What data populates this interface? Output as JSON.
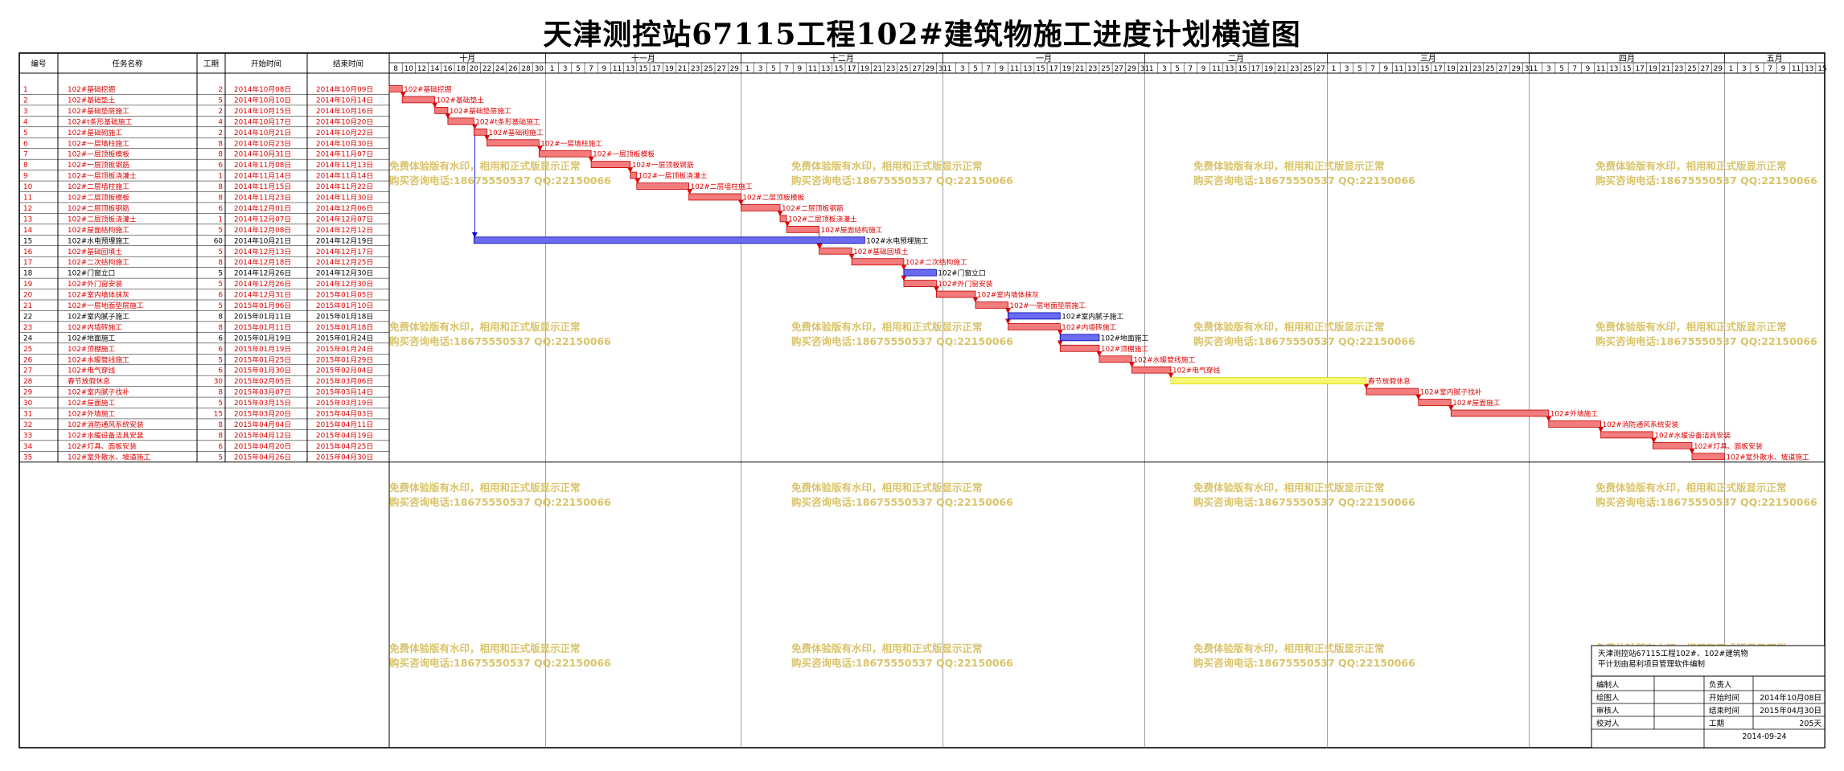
{
  "title": "天津测控站67115工程102#建筑物施工进度计划横道图",
  "columns": {
    "no": "编号",
    "name": "任务名称",
    "dur": "工期",
    "start": "开始时间",
    "end": "结束时间"
  },
  "chart_data": {
    "type": "gantt",
    "title": "天津测控站67115工程102#建筑物施工进度计划横道图",
    "time_axis": {
      "start": "2014-10-08",
      "end": "2015-05-15",
      "months": [
        {
          "label": "十月",
          "start": "2014-10-08"
        },
        {
          "label": "十一月",
          "start": "2014-11-01"
        },
        {
          "label": "十二月",
          "start": "2014-12-01"
        },
        {
          "label": "一月",
          "start": "2015-01-01"
        },
        {
          "label": "二月",
          "start": "2015-02-01"
        },
        {
          "label": "三月",
          "start": "2015-03-01"
        },
        {
          "label": "四月",
          "start": "2015-04-01"
        },
        {
          "label": "五月",
          "start": "2015-05-01"
        }
      ],
      "day_labels": "odd days of month (1,3,5,...), October from 8"
    },
    "colors": {
      "critical": "#f47c7c",
      "normal": "#6b6bf0",
      "holiday": "#f7f774",
      "link_red": "#e00000",
      "link_blue": "#0000e0"
    },
    "tasks": [
      {
        "no": "1",
        "name": "102#基础挖掘",
        "dur": "2",
        "start": "2014年10月08日",
        "end": "2014年10月09日",
        "s": "2014-10-08",
        "e": "2014-10-09",
        "kind": "critical",
        "label": "102#基础挖掘"
      },
      {
        "no": "2",
        "name": "102#基础垫土",
        "dur": "5",
        "start": "2014年10月10日",
        "end": "2014年10月14日",
        "s": "2014-10-10",
        "e": "2014-10-14",
        "kind": "critical",
        "label": "102#基础垫土"
      },
      {
        "no": "3",
        "name": "102#基础垫层施工",
        "dur": "2",
        "start": "2014年10月15日",
        "end": "2014年10月16日",
        "s": "2014-10-15",
        "e": "2014-10-16",
        "kind": "critical",
        "label": "102#基础垫层施工"
      },
      {
        "no": "4",
        "name": "102#t条形基础施工",
        "dur": "4",
        "start": "2014年10月17日",
        "end": "2014年10月20日",
        "s": "2014-10-17",
        "e": "2014-10-20",
        "kind": "critical",
        "label": "102#t条形基础施工"
      },
      {
        "no": "5",
        "name": "102#基础砌施工",
        "dur": "2",
        "start": "2014年10月21日",
        "end": "2014年10月22日",
        "s": "2014-10-21",
        "e": "2014-10-22",
        "kind": "critical",
        "label": "102#基础砌施工"
      },
      {
        "no": "6",
        "name": "102#一层墙柱施工",
        "dur": "8",
        "start": "2014年10月23日",
        "end": "2014年10月30日",
        "s": "2014-10-23",
        "e": "2014-10-30",
        "kind": "critical",
        "label": "102#一层墙柱施工"
      },
      {
        "no": "7",
        "name": "102#一层顶板模板",
        "dur": "8",
        "start": "2014年10月31日",
        "end": "2014年11月07日",
        "s": "2014-10-31",
        "e": "2014-11-07",
        "kind": "critical",
        "label": "102#一层顶板模板"
      },
      {
        "no": "8",
        "name": "102#一层顶板钢筋",
        "dur": "6",
        "start": "2014年11月08日",
        "end": "2014年11月13日",
        "s": "2014-11-08",
        "e": "2014-11-13",
        "kind": "critical",
        "label": "102#一层顶板钢筋"
      },
      {
        "no": "9",
        "name": "102#一层顶板浇灌土",
        "dur": "1",
        "start": "2014年11月14日",
        "end": "2014年11月14日",
        "s": "2014-11-14",
        "e": "2014-11-14",
        "kind": "critical",
        "label": "102#一层顶板浇灌土"
      },
      {
        "no": "10",
        "name": "102#二层墙柱施工",
        "dur": "8",
        "start": "2014年11月15日",
        "end": "2014年11月22日",
        "s": "2014-11-15",
        "e": "2014-11-22",
        "kind": "critical",
        "label": "102#二层墙柱施工"
      },
      {
        "no": "11",
        "name": "102#二层顶板模板",
        "dur": "8",
        "start": "2014年11月23日",
        "end": "2014年11月30日",
        "s": "2014-11-23",
        "e": "2014-11-30",
        "kind": "critical",
        "label": "102#二层顶板模板"
      },
      {
        "no": "12",
        "name": "102#二层顶板钢筋",
        "dur": "6",
        "start": "2014年12月01日",
        "end": "2014年12月06日",
        "s": "2014-12-01",
        "e": "2014-12-06",
        "kind": "critical",
        "label": "102#二层顶板钢筋"
      },
      {
        "no": "13",
        "name": "102#二层顶板浇灌土",
        "dur": "1",
        "start": "2014年12月07日",
        "end": "2014年12月07日",
        "s": "2014-12-07",
        "e": "2014-12-07",
        "kind": "critical",
        "label": "102#二层顶板浇灌土"
      },
      {
        "no": "14",
        "name": "102#屋面结构施工",
        "dur": "5",
        "start": "2014年12月08日",
        "end": "2014年12月12日",
        "s": "2014-12-08",
        "e": "2014-12-12",
        "kind": "critical",
        "label": "102#屋面结构施工"
      },
      {
        "no": "15",
        "name": "102#水电预埋施工",
        "dur": "60",
        "start": "2014年10月21日",
        "end": "2014年12月19日",
        "s": "2014-10-21",
        "e": "2014-12-19",
        "kind": "normal",
        "label": "102#水电预埋施工"
      },
      {
        "no": "16",
        "name": "102#基础回填土",
        "dur": "5",
        "start": "2014年12月13日",
        "end": "2014年12月17日",
        "s": "2014-12-13",
        "e": "2014-12-17",
        "kind": "critical",
        "label": "102#基础回填土"
      },
      {
        "no": "17",
        "name": "102#二次结构施工",
        "dur": "8",
        "start": "2014年12月18日",
        "end": "2014年12月25日",
        "s": "2014-12-18",
        "e": "2014-12-25",
        "kind": "critical",
        "label": "102#二次结构施工"
      },
      {
        "no": "18",
        "name": "102#门窗立口",
        "dur": "5",
        "start": "2014年12月26日",
        "end": "2014年12月30日",
        "s": "2014-12-26",
        "e": "2014-12-30",
        "kind": "normal",
        "label": "102#门窗立口"
      },
      {
        "no": "19",
        "name": "102#外门窗安装",
        "dur": "5",
        "start": "2014年12月26日",
        "end": "2014年12月30日",
        "s": "2014-12-26",
        "e": "2014-12-30",
        "kind": "critical",
        "label": "102#外门窗安装"
      },
      {
        "no": "20",
        "name": "102#室内墙体抹灰",
        "dur": "6",
        "start": "2014年12月31日",
        "end": "2015年01月05日",
        "s": "2014-12-31",
        "e": "2015-01-05",
        "kind": "critical",
        "label": "102#室内墙体抹灰"
      },
      {
        "no": "21",
        "name": "102#一层地面垫层施工",
        "dur": "5",
        "start": "2015年01月06日",
        "end": "2015年01月10日",
        "s": "2015-01-06",
        "e": "2015-01-10",
        "kind": "critical",
        "label": "102#一层地面垫层施工"
      },
      {
        "no": "22",
        "name": "102#室内腻子施工",
        "dur": "8",
        "start": "2015年01月11日",
        "end": "2015年01月18日",
        "s": "2015-01-11",
        "e": "2015-01-18",
        "kind": "normal",
        "label": "102#室内腻子施工"
      },
      {
        "no": "23",
        "name": "102#内墙砖施工",
        "dur": "8",
        "start": "2015年01月11日",
        "end": "2015年01月18日",
        "s": "2015-01-11",
        "e": "2015-01-18",
        "kind": "critical",
        "label": "102#内墙砖施工"
      },
      {
        "no": "24",
        "name": "102#地面施工",
        "dur": "6",
        "start": "2015年01月19日",
        "end": "2015年01月24日",
        "s": "2015-01-19",
        "e": "2015-01-24",
        "kind": "normal",
        "label": "102#地面施工"
      },
      {
        "no": "25",
        "name": "102#顶棚施工",
        "dur": "6",
        "start": "2015年01月19日",
        "end": "2015年01月24日",
        "s": "2015-01-19",
        "e": "2015-01-24",
        "kind": "critical",
        "label": "102#顶棚施工"
      },
      {
        "no": "26",
        "name": "102#水暖管线施工",
        "dur": "5",
        "start": "2015年01月25日",
        "end": "2015年01月29日",
        "s": "2015-01-25",
        "e": "2015-01-29",
        "kind": "critical",
        "label": "102#水暖管线施工"
      },
      {
        "no": "27",
        "name": "102#电气穿线",
        "dur": "6",
        "start": "2015年01月30日",
        "end": "2015年02月04日",
        "s": "2015-01-30",
        "e": "2015-02-04",
        "kind": "critical",
        "label": "102#电气穿线"
      },
      {
        "no": "28",
        "name": "春节放假休息",
        "dur": "30",
        "start": "2015年02月05日",
        "end": "2015年03月06日",
        "s": "2015-02-05",
        "e": "2015-03-06",
        "kind": "holiday",
        "label": "春节放假休息"
      },
      {
        "no": "29",
        "name": "102#室内腻子找补",
        "dur": "8",
        "start": "2015年03月07日",
        "end": "2015年03月14日",
        "s": "2015-03-07",
        "e": "2015-03-14",
        "kind": "critical",
        "label": "102#室内腻子找补"
      },
      {
        "no": "30",
        "name": "102#屋面施工",
        "dur": "5",
        "start": "2015年03月15日",
        "end": "2015年03月19日",
        "s": "2015-03-15",
        "e": "2015-03-19",
        "kind": "critical",
        "label": "102#屋面施工"
      },
      {
        "no": "31",
        "name": "102#外墙施工",
        "dur": "15",
        "start": "2015年03月20日",
        "end": "2015年04月03日",
        "s": "2015-03-20",
        "e": "2015-04-03",
        "kind": "critical",
        "label": "102#外墙施工"
      },
      {
        "no": "32",
        "name": "102#消防通风系统安装",
        "dur": "8",
        "start": "2015年04月04日",
        "end": "2015年04月11日",
        "s": "2015-04-04",
        "e": "2015-04-11",
        "kind": "critical",
        "label": "102#消防通风系统安装"
      },
      {
        "no": "33",
        "name": "102#水暖设备洁具安装",
        "dur": "8",
        "start": "2015年04月12日",
        "end": "2015年04月19日",
        "s": "2015-04-12",
        "e": "2015-04-19",
        "kind": "critical",
        "label": "102#水暖设备洁具安装"
      },
      {
        "no": "34",
        "name": "102#灯具、面板安装",
        "dur": "6",
        "start": "2015年04月20日",
        "end": "2015年04月25日",
        "s": "2015-04-20",
        "e": "2015-04-25",
        "kind": "critical",
        "label": "102#灯具、面板安装"
      },
      {
        "no": "35",
        "name": "102#室外散水、坡道施工",
        "dur": "5",
        "start": "2015年04月26日",
        "end": "2015年04月30日",
        "s": "2015-04-26",
        "e": "2015-04-30",
        "kind": "critical",
        "label": "102#室外散水、坡道施工"
      }
    ],
    "links": [
      {
        "from": 1,
        "to": 2
      },
      {
        "from": 2,
        "to": 3
      },
      {
        "from": 3,
        "to": 4
      },
      {
        "from": 4,
        "to": 5
      },
      {
        "from": 5,
        "to": 6
      },
      {
        "from": 6,
        "to": 7
      },
      {
        "from": 7,
        "to": 8
      },
      {
        "from": 8,
        "to": 9
      },
      {
        "from": 9,
        "to": 10
      },
      {
        "from": 10,
        "to": 11
      },
      {
        "from": 11,
        "to": 12
      },
      {
        "from": 12,
        "to": 13
      },
      {
        "from": 13,
        "to": 14
      },
      {
        "from": 14,
        "to": 16
      },
      {
        "from": 15,
        "to": 16
      },
      {
        "from": 16,
        "to": 17
      },
      {
        "from": 17,
        "to": 18
      },
      {
        "from": 17,
        "to": 19
      },
      {
        "from": 19,
        "to": 20
      },
      {
        "from": 20,
        "to": 21
      },
      {
        "from": 21,
        "to": 22
      },
      {
        "from": 21,
        "to": 23
      },
      {
        "from": 23,
        "to": 24
      },
      {
        "from": 23,
        "to": 25
      },
      {
        "from": 25,
        "to": 26
      },
      {
        "from": 26,
        "to": 27
      },
      {
        "from": 27,
        "to": 28
      },
      {
        "from": 28,
        "to": 29
      },
      {
        "from": 29,
        "to": 30
      },
      {
        "from": 30,
        "to": 31
      },
      {
        "from": 31,
        "to": 32
      },
      {
        "from": 32,
        "to": 33
      },
      {
        "from": 33,
        "to": 34
      },
      {
        "from": 34,
        "to": 35
      },
      {
        "from": 5,
        "to": 15,
        "color": "blue"
      }
    ]
  },
  "watermark": {
    "line1": "免费体验版有水印，相用和正式版显示正常",
    "line2": "购买咨询电话:18675550537 QQ:22150066"
  },
  "info_box": {
    "project_line1": "天津测控站67115工程102#、102#建筑物",
    "project_line2": "平计划由易利项目管理软件编制",
    "rows": [
      {
        "label": "编制人",
        "label2": "负责人",
        "value": ""
      },
      {
        "label": "绘图人",
        "label2": "开始时间",
        "value": "2014年10月08日"
      },
      {
        "label": "审核人",
        "label2": "结束时间",
        "value": "2015年04月30日"
      },
      {
        "label": "校对人",
        "label2": "工期",
        "value": "205天"
      }
    ],
    "date": "2014-09-24"
  }
}
